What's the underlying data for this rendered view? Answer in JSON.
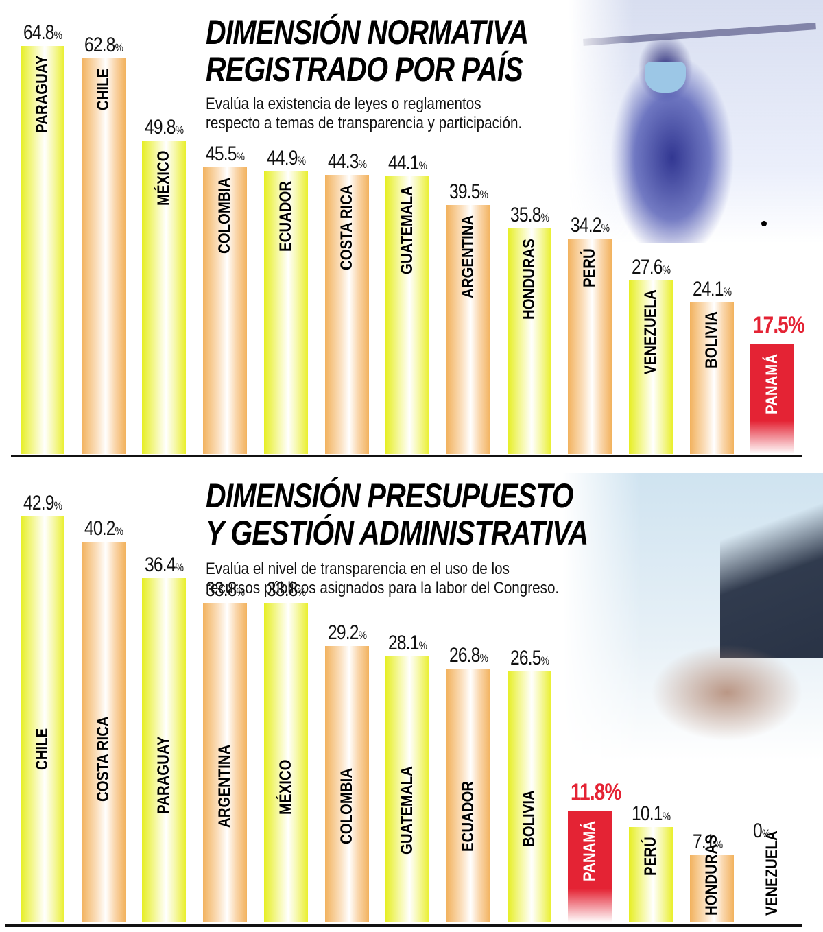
{
  "chart_data": [
    {
      "type": "bar",
      "title": "DIMENSIÓN NORMATIVA REGISTRADO POR PAÍS",
      "subtitle": "Evalúa la existencia de leyes o reglamentos respecto a temas de transparencia y participación.",
      "xlabel": "",
      "ylabel": "",
      "unit": "%",
      "grid": false,
      "legend": null,
      "highlight": "PANAMÁ",
      "highlight_color": "#e42334",
      "categories": [
        "PARAGUAY",
        "CHILE",
        "MÉXICO",
        "COLOMBIA",
        "ECUADOR",
        "COSTA RICA",
        "GUATEMALA",
        "ARGENTINA",
        "HONDURAS",
        "PERÚ",
        "VENEZUELA",
        "BOLIVIA",
        "PANAMÁ"
      ],
      "values": [
        64.8,
        62.8,
        49.8,
        45.5,
        44.9,
        44.3,
        44.1,
        39.5,
        35.8,
        34.2,
        27.6,
        24.1,
        17.5
      ],
      "value_labels": [
        "64.8",
        "62.8",
        "49.8",
        "45.5",
        "44.9",
        "44.3",
        "44.1",
        "39.5",
        "35.8",
        "34.2",
        "27.6",
        "24.1",
        "17.5"
      ],
      "colors": [
        "yellow",
        "orange",
        "yellow",
        "orange",
        "yellow",
        "orange",
        "yellow",
        "orange",
        "yellow",
        "orange",
        "yellow",
        "orange",
        "red"
      ]
    },
    {
      "type": "bar",
      "title": "DIMENSIÓN PRESUPUESTO Y GESTIÓN ADMINISTRATIVA",
      "subtitle": "Evalúa el nivel de transparencia en el uso de los recursos públicos asignados para la labor del Congreso.",
      "xlabel": "",
      "ylabel": "",
      "unit": "%",
      "grid": false,
      "legend": null,
      "highlight": "PANAMÁ",
      "highlight_color": "#e42334",
      "categories": [
        "CHILE",
        "COSTA RICA",
        "PARAGUAY",
        "ARGENTINA",
        "MÉXICO",
        "COLOMBIA",
        "GUATEMALA",
        "ECUADOR",
        "BOLIVIA",
        "PANAMÁ",
        "PERÚ",
        "HONDURAS",
        "VENEZUELA"
      ],
      "values": [
        42.9,
        40.2,
        36.4,
        33.8,
        33.8,
        29.2,
        28.1,
        26.8,
        26.5,
        11.8,
        10.1,
        7.1,
        0
      ],
      "value_labels": [
        "42.9",
        "40.2",
        "36.4",
        "33.8",
        "33.8",
        "29.2",
        "28.1",
        "26.8",
        "26.5",
        "11.8",
        "10.1",
        "7.1",
        "0"
      ],
      "colors": [
        "yellow",
        "orange",
        "yellow",
        "orange",
        "yellow",
        "orange",
        "yellow",
        "orange",
        "yellow",
        "red",
        "yellow",
        "orange",
        "none"
      ]
    }
  ],
  "panel1": {
    "title_line1": "DIMENSIÓN NORMATIVA",
    "title_line2": "REGISTRADO POR PAÍS",
    "subtitle_line1": "Evalúa la existencia de leyes o reglamentos",
    "subtitle_line2": "respecto a temas de transparencia y participación.",
    "image": "lady-justice-with-face-mask-photo"
  },
  "panel2": {
    "title_line1": "DIMENSIÓN PRESUPUESTO",
    "title_line2": "Y GESTIÓN ADMINISTRATIVA",
    "subtitle_line1": "Evalúa el nivel de transparencia en el uso de los",
    "subtitle_line2": "recursos públicos asignados para la labor del Congreso.",
    "image": "hand-writing-on-financial-charts-photo"
  },
  "percent_sign": "%"
}
